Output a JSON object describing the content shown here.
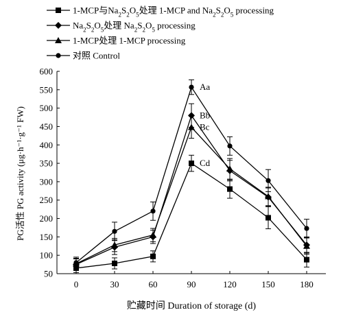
{
  "chart_data": {
    "type": "line",
    "xlabel": "贮藏时间 Duration of storage (d)",
    "ylabel": "PG活性 PG activity (μg·h⁻¹·g⁻¹ FW)",
    "x": [
      0,
      30,
      60,
      90,
      120,
      150,
      180
    ],
    "xlim": [
      0,
      180
    ],
    "ylim": [
      50,
      600
    ],
    "yticks": [
      50,
      100,
      150,
      200,
      250,
      300,
      350,
      400,
      450,
      500,
      550,
      600
    ],
    "grid": false,
    "legend_position": "top-left",
    "series": [
      {
        "name_parts": [
          "1-MCP与Na",
          "2",
          "S",
          "2",
          "O",
          "5",
          "处理 1-MCP and Na",
          "2",
          "S",
          "2",
          "O",
          "5",
          " processing"
        ],
        "marker": "square",
        "values": [
          65,
          78,
          97,
          350,
          280,
          202,
          88
        ],
        "errors": [
          12,
          15,
          15,
          22,
          25,
          30,
          20
        ]
      },
      {
        "name_parts": [
          "Na",
          "2",
          "S",
          "2",
          "O",
          "5",
          "处理 Na",
          "2",
          "S",
          "2",
          "O",
          "5",
          " processing"
        ],
        "marker": "diamond",
        "values": [
          75,
          122,
          150,
          480,
          330,
          258,
          128
        ],
        "errors": [
          15,
          20,
          18,
          32,
          28,
          25,
          22
        ]
      },
      {
        "name_parts": [
          "1-MCP处理 1-MCP processing"
        ],
        "marker": "triangle",
        "values": [
          77,
          128,
          155,
          448,
          335,
          260,
          125
        ],
        "errors": [
          15,
          18,
          18,
          30,
          28,
          25,
          22
        ]
      },
      {
        "name_parts": [
          "对照 Control"
        ],
        "marker": "circle",
        "values": [
          80,
          165,
          220,
          557,
          397,
          303,
          173
        ],
        "errors": [
          15,
          25,
          25,
          20,
          25,
          30,
          25
        ]
      }
    ],
    "annotations": [
      {
        "text": "Aa",
        "x": 90,
        "y": 557
      },
      {
        "text": "Bb",
        "x": 90,
        "y": 480
      },
      {
        "text": "Bc",
        "x": 90,
        "y": 448
      },
      {
        "text": "Cd",
        "x": 90,
        "y": 350
      }
    ]
  }
}
